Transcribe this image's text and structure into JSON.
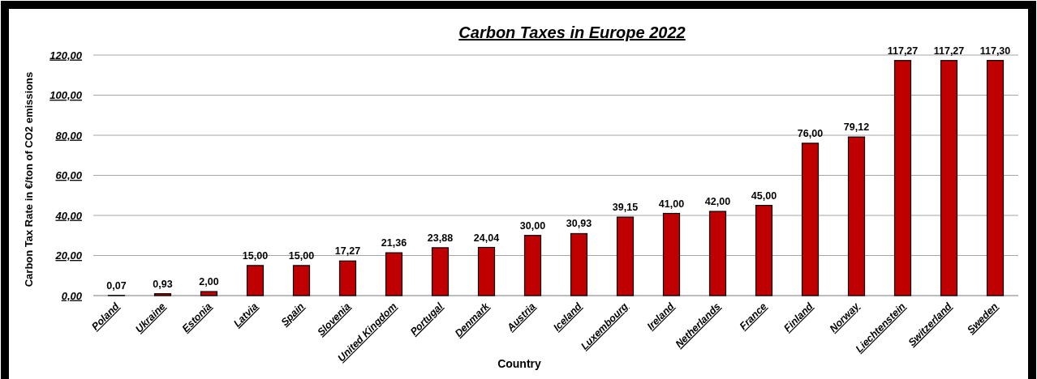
{
  "chart_data": {
    "type": "bar",
    "title": "Carbon Taxes in Europe 2022",
    "xlabel": "Country",
    "ylabel": "Carbon Tax Rate in €/ton of CO2 emissions",
    "categories": [
      "Poland",
      "Ukraine",
      "Estonia",
      "Latvia",
      "Spain",
      "Slovenia",
      "United Kingdom",
      "Portugal",
      "Denmark",
      "Austria",
      "Iceland",
      "Luxembourg",
      "Ireland",
      "Netherlands",
      "France",
      "Finland",
      "Norway",
      "Liechtenstein",
      "Switzerland",
      "Sweden"
    ],
    "values": [
      0.07,
      0.93,
      2.0,
      15.0,
      15.0,
      17.27,
      21.36,
      23.88,
      24.04,
      30.0,
      30.93,
      39.15,
      41.0,
      42.0,
      45.0,
      76.0,
      79.12,
      117.27,
      117.27,
      117.3
    ],
    "value_labels": [
      "0,07",
      "0,93",
      "2,00",
      "15,00",
      "15,00",
      "17,27",
      "21,36",
      "23,88",
      "24,04",
      "30,00",
      "30,93",
      "39,15",
      "41,00",
      "42,00",
      "45,00",
      "76,00",
      "79,12",
      "117,27",
      "117,27",
      "117,30"
    ],
    "color": "#c00000",
    "ylim": [
      0,
      120
    ],
    "yticks": [
      {
        "value": 0,
        "label": "0,00"
      },
      {
        "value": 20,
        "label": "20,00"
      },
      {
        "value": 40,
        "label": "40,00"
      },
      {
        "value": 60,
        "label": "60,00"
      },
      {
        "value": 80,
        "label": "80,00"
      },
      {
        "value": 100,
        "label": "100,00"
      },
      {
        "value": 120,
        "label": "120,00"
      }
    ],
    "grid": "y"
  }
}
